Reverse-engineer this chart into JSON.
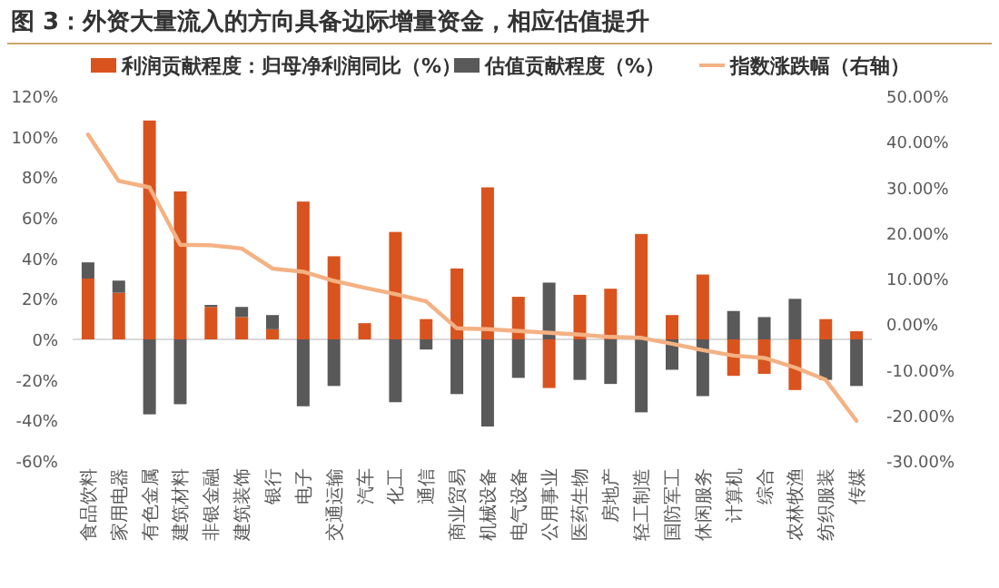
{
  "chart_data": {
    "type": "bar",
    "title": "图 3：外资大量流入的方向具备边际增量资金，相应估值提升",
    "categories": [
      "食品饮料",
      "家用电器",
      "有色金属",
      "建筑材料",
      "非银金融",
      "建筑装饰",
      "银行",
      "电子",
      "交通运输",
      "汽车",
      "化工",
      "通信",
      "商业贸易",
      "机械设备",
      "电气设备",
      "公用事业",
      "医药生物",
      "房地产",
      "轻工制造",
      "国防军工",
      "休闲服务",
      "计算机",
      "综合",
      "农林牧渔",
      "纺织服装",
      "传媒"
    ],
    "series": [
      {
        "name": "利润贡献程度：归母净利润同比（%）",
        "color": "#d9531e",
        "values": [
          30,
          23,
          108,
          73,
          16,
          11,
          5,
          68,
          41,
          8,
          53,
          10,
          35,
          75,
          21,
          -24,
          22,
          25,
          52,
          12,
          32,
          -18,
          -17,
          -25,
          10,
          4
        ]
      },
      {
        "name": "估值贡献程度（%）",
        "color": "#595959",
        "values": [
          8,
          6,
          -37,
          -32,
          1,
          5,
          7,
          -33,
          -23,
          null,
          -31,
          -5,
          -27,
          -43,
          -19,
          28,
          -20,
          -22,
          -36,
          -15,
          -28,
          14,
          11,
          20,
          -20,
          -23
        ]
      },
      {
        "name": "指数涨跌幅（右轴）",
        "type": "line",
        "axis": "y2",
        "color": "#f4b183",
        "values": [
          41.6,
          31.4,
          30,
          17.4,
          17.3,
          16.6,
          12.2,
          11.5,
          9.5,
          8,
          6.6,
          5,
          -0.9,
          -1.1,
          -1.5,
          -1.9,
          -2.3,
          -2.8,
          -3,
          -4.3,
          -5.7,
          -6.9,
          -7.4,
          -9.5,
          -12.2,
          -21.2
        ]
      }
    ],
    "stacked": true,
    "legend": "top",
    "ylim": [
      -60,
      120
    ],
    "yticks": [
      {
        "value": -60,
        "label": "-60%"
      },
      {
        "value": -40,
        "label": "-40%"
      },
      {
        "value": -20,
        "label": "-20%"
      },
      {
        "value": 0,
        "label": "0%"
      },
      {
        "value": 20,
        "label": "20%"
      },
      {
        "value": 40,
        "label": "40%"
      },
      {
        "value": 60,
        "label": "60%"
      },
      {
        "value": 80,
        "label": "80%"
      },
      {
        "value": 100,
        "label": "100%"
      },
      {
        "value": 120,
        "label": "120%"
      }
    ],
    "y2lim": [
      -30,
      50
    ],
    "y2ticks": [
      {
        "value": -30,
        "label": "-30.00%"
      },
      {
        "value": -20,
        "label": "-20.00%"
      },
      {
        "value": -10,
        "label": "-10.00%"
      },
      {
        "value": 0,
        "label": "0.00%"
      },
      {
        "value": 10,
        "label": "10.00%"
      },
      {
        "value": 20,
        "label": "20.00%"
      },
      {
        "value": 30,
        "label": "30.00%"
      },
      {
        "value": 40,
        "label": "40.00%"
      },
      {
        "value": 50,
        "label": "50.00%"
      }
    ]
  }
}
